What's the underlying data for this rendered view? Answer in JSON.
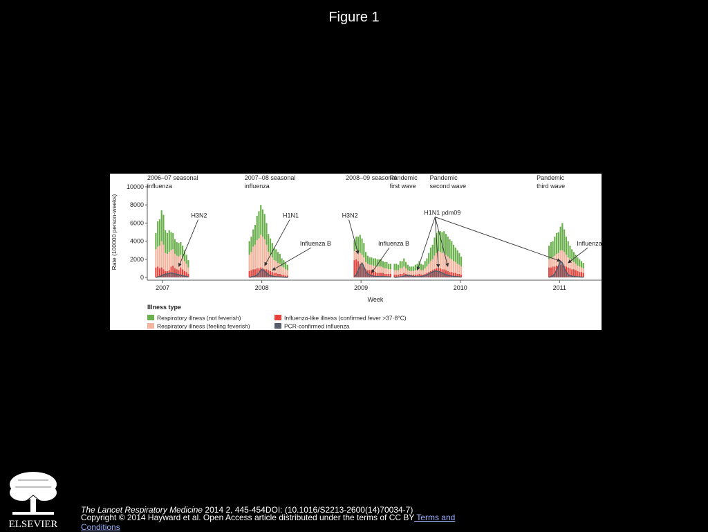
{
  "slide_title": "Figure 1",
  "citation": {
    "journal": "The Lancet Respiratory Medicine",
    "details": " 2014 2, 445-454DOI: (10.1016/S2213-2600(14)70034-7) "
  },
  "copyright": {
    "text": "Copyright © 2014 Hayward et al. Open Access article distributed under the terms of CC BY",
    "link_text": " Terms and Conditions"
  },
  "logo": {
    "label": "ELSEVIER"
  },
  "colors": {
    "not_feverish": "#6ab04c",
    "feeling_feverish": "#f4b49e",
    "ili": "#e8413a",
    "pcr": "#555e6b",
    "background": "#000000"
  },
  "chart_data": {
    "type": "bar",
    "stacked": true,
    "xlabel": "Week",
    "ylabel": "Rate (100000 person-weeks)",
    "ylim": [
      0,
      10000
    ],
    "yticks": [
      "10000",
      "8000",
      "6000",
      "4000",
      "2000",
      "0"
    ],
    "year_ticks": [
      {
        "label": "2007",
        "week": 2
      },
      {
        "label": "2008",
        "week": 54
      },
      {
        "label": "2009",
        "week": 106
      },
      {
        "label": "2010",
        "week": 158
      },
      {
        "label": "2011",
        "week": 210
      }
    ],
    "x_range": [
      -6,
      232
    ],
    "legend": {
      "title": "Illness type",
      "entries": [
        {
          "key": "not_feverish",
          "label": "Respiratory illness (not feverish)"
        },
        {
          "key": "ili",
          "label": "Influenza-like illness (confirmed fever >37·8°C)"
        },
        {
          "key": "feeling_feverish",
          "label": "Respiratory illness (feeling feverish)"
        },
        {
          "key": "pcr",
          "label": "PCR-confirmed influenza"
        }
      ]
    },
    "periods": [
      {
        "start_week": -2,
        "not_feverish": [
          1800,
          2800,
          2900,
          3400,
          3300,
          2500,
          2300,
          2400,
          2000,
          1800,
          1600,
          1500,
          1500,
          1400,
          1300,
          1200,
          1000,
          800
        ],
        "feeling_feverish": [
          2000,
          2200,
          2500,
          2900,
          2700,
          2000,
          1900,
          2000,
          1800,
          1800,
          1600,
          1500,
          1500,
          1400,
          1300,
          1100,
          900,
          700
        ],
        "ili": [
          1100,
          1200,
          1000,
          1100,
          900,
          700,
          700,
          800,
          1200,
          1300,
          1000,
          900,
          800,
          1100,
          900,
          700,
          600,
          400
        ],
        "pcr": [
          0,
          50,
          100,
          200,
          300,
          350,
          400,
          450,
          500,
          450,
          400,
          350,
          300,
          250,
          200,
          150,
          100,
          50
        ]
      },
      {
        "start_week": 47,
        "not_feverish": [
          1500,
          1700,
          1900,
          2200,
          2700,
          3000,
          3300,
          3000,
          2800,
          2400,
          2000,
          1800,
          1600,
          1400,
          1300,
          1200,
          1100,
          900,
          800,
          700,
          600
        ],
        "feeling_feverish": [
          1800,
          2000,
          2500,
          2700,
          3100,
          3300,
          3600,
          3500,
          3300,
          2700,
          2000,
          1800,
          1600,
          1400,
          1300,
          1200,
          1100,
          900,
          800,
          700,
          600
        ],
        "ili": [
          700,
          800,
          900,
          900,
          1000,
          1000,
          1100,
          1000,
          900,
          900,
          800,
          700,
          600,
          500,
          500,
          400,
          400,
          300,
          300,
          200,
          200
        ],
        "pcr": [
          0,
          50,
          100,
          150,
          300,
          500,
          800,
          900,
          700,
          500,
          300,
          200,
          150,
          100,
          80,
          60,
          50,
          40,
          30,
          20,
          10
        ]
      },
      {
        "start_week": 102,
        "not_feverish": [
          1200,
          1400,
          1600,
          2000,
          1800,
          1600,
          1100,
          900,
          800,
          800,
          800,
          800,
          800,
          800,
          800,
          700,
          700,
          700,
          600,
          600
        ],
        "feeling_feverish": [
          1000,
          1100,
          1100,
          1200,
          1200,
          1100,
          800,
          700,
          600,
          600,
          700,
          700,
          700,
          700,
          700,
          600,
          600,
          600,
          500,
          500
        ],
        "ili": [
          1900,
          2000,
          1800,
          1500,
          1300,
          1100,
          900,
          800,
          800,
          800,
          600,
          600,
          500,
          500,
          500,
          500,
          400,
          400,
          400,
          400
        ],
        "pcr": [
          100,
          300,
          800,
          1300,
          1600,
          1200,
          700,
          400,
          300,
          200,
          150,
          120,
          100,
          100,
          100,
          90,
          80,
          70,
          60,
          50
        ]
      },
      {
        "start_week": 123,
        "not_feverish": [
          700,
          700,
          600,
          800,
          800,
          900,
          700,
          600,
          500,
          500,
          500,
          600,
          700,
          800,
          700,
          600,
          800,
          900,
          1200,
          1500,
          1600,
          2000,
          2200,
          2200,
          2300,
          2300,
          2400,
          2300,
          2200,
          2100,
          2000,
          1800,
          1600,
          1500,
          1300,
          1100
        ],
        "feeling_feverish": [
          500,
          500,
          500,
          600,
          600,
          700,
          600,
          500,
          400,
          400,
          400,
          500,
          500,
          600,
          500,
          500,
          600,
          700,
          900,
          1100,
          1200,
          1500,
          1700,
          1800,
          1800,
          1800,
          1800,
          1700,
          1600,
          1500,
          1400,
          1300,
          1200,
          1100,
          1000,
          900
        ],
        "ili": [
          300,
          300,
          300,
          400,
          400,
          500,
          400,
          300,
          300,
          300,
          300,
          300,
          300,
          400,
          300,
          300,
          400,
          500,
          600,
          700,
          800,
          900,
          1000,
          1100,
          1000,
          900,
          900,
          800,
          700,
          600,
          600,
          500,
          500,
          400,
          400,
          300
        ],
        "pcr": [
          0,
          20,
          40,
          60,
          100,
          150,
          200,
          250,
          200,
          150,
          100,
          80,
          60,
          80,
          100,
          150,
          200,
          300,
          400,
          500,
          600,
          700,
          700,
          650,
          600,
          500,
          400,
          300,
          250,
          200,
          150,
          120,
          100,
          80,
          60,
          40
        ]
      },
      {
        "start_week": 204,
        "not_feverish": [
          1500,
          1800,
          1800,
          2100,
          2300,
          2300,
          2600,
          3000,
          2500,
          2000,
          1800,
          1500,
          1300,
          1100,
          1000,
          900,
          800,
          700,
          600
        ],
        "feeling_feverish": [
          900,
          1000,
          1000,
          1200,
          1300,
          1400,
          1600,
          1600,
          1500,
          1300,
          1100,
          1000,
          900,
          800,
          700,
          600,
          600,
          500,
          500
        ],
        "ili": [
          1100,
          1100,
          1200,
          1200,
          1300,
          1300,
          1400,
          1400,
          1300,
          1200,
          1100,
          1000,
          900,
          900,
          800,
          700,
          600,
          600,
          500
        ],
        "pcr": [
          0,
          100,
          200,
          400,
          800,
          1300,
          1800,
          1600,
          1000,
          600,
          300,
          200,
          150,
          100,
          80,
          60,
          50,
          40,
          30
        ]
      }
    ],
    "annotations": [
      {
        "label": "2006–07 seasonal",
        "label2": "influenza",
        "week": -6,
        "row": 0,
        "kind": "period"
      },
      {
        "label": "2007–08 seasonal",
        "label2": "influenza",
        "week": 45,
        "row": 0,
        "kind": "period"
      },
      {
        "label": "2008–09 seasonal",
        "label2": "",
        "week": 98,
        "row": 0,
        "kind": "period"
      },
      {
        "label": "Pandemic",
        "label2": "first wave",
        "week": 121,
        "row": 0,
        "kind": "period"
      },
      {
        "label": "Pandemic",
        "label2": "second wave",
        "week": 142,
        "row": 0,
        "kind": "period"
      },
      {
        "label": "Pandemic",
        "label2": "third wave",
        "week": 198,
        "row": 0,
        "kind": "period"
      },
      {
        "label": "H3N2",
        "week": 17,
        "level": 6600,
        "kind": "strain",
        "targets": [
          {
            "week": 10,
            "value": 1200
          }
        ]
      },
      {
        "label": "H1N1",
        "week": 65,
        "level": 6600,
        "kind": "strain",
        "targets": [
          {
            "week": 55,
            "value": 1300
          }
        ]
      },
      {
        "label": "Influenza B",
        "week": 74,
        "level": 3500,
        "kind": "strain",
        "targets": [
          {
            "week": 59,
            "value": 800
          }
        ]
      },
      {
        "label": "H3N2",
        "week": 96,
        "level": 6600,
        "kind": "strain",
        "targets": [
          {
            "week": 104,
            "value": 2600
          }
        ]
      },
      {
        "label": "Influenza B",
        "week": 115,
        "level": 3500,
        "kind": "strain",
        "targets": [
          {
            "week": 111,
            "value": 500
          }
        ]
      },
      {
        "label": "H1N1 pdm09",
        "week": 139,
        "level": 6900,
        "kind": "strain",
        "targets": [
          {
            "week": 135,
            "value": 800
          },
          {
            "week": 146,
            "value": 1100
          },
          {
            "week": 151,
            "value": 1200
          },
          {
            "week": 210,
            "value": 1800
          }
        ]
      },
      {
        "label": "Influenza B",
        "week": 219,
        "level": 3500,
        "kind": "strain",
        "targets": [
          {
            "week": 214,
            "value": 1600
          }
        ]
      }
    ]
  }
}
